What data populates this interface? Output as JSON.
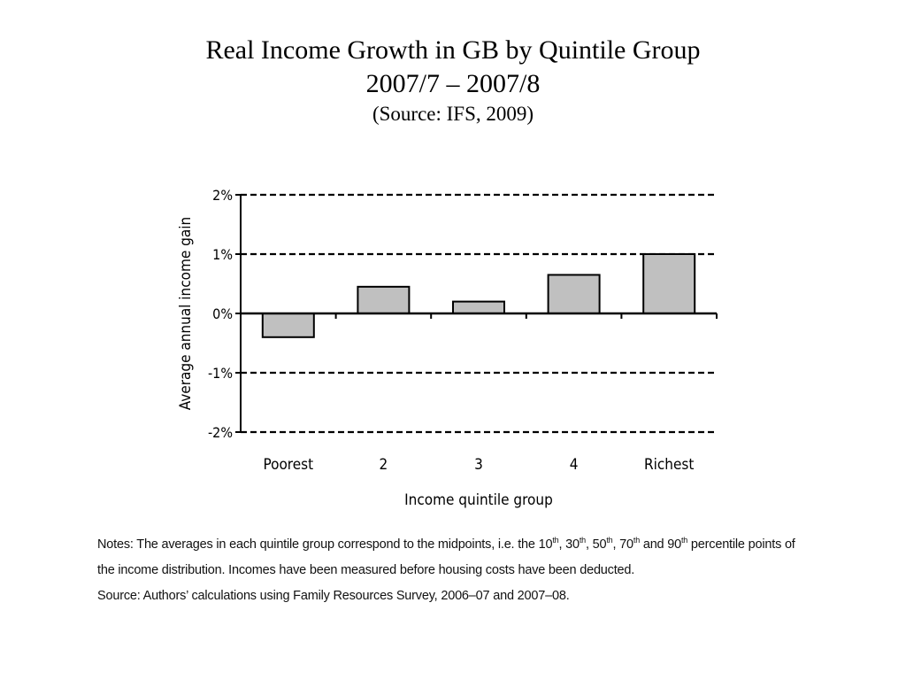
{
  "title": {
    "line1": "Real Income Growth in GB by Quintile Group",
    "line2": "2007/7 – 2007/8",
    "source": "(Source: IFS, 2009)"
  },
  "chart_data": {
    "type": "bar",
    "categories": [
      "Poorest",
      "2",
      "3",
      "4",
      "Richest"
    ],
    "values": [
      -0.4,
      0.45,
      0.2,
      0.65,
      1.0
    ],
    "xlabel": "Income quintile group",
    "ylabel": "Average annual income gain",
    "ylim": [
      -2,
      2
    ],
    "yticks": [
      2,
      1,
      0,
      -1,
      -2
    ],
    "ytick_labels": [
      "2%",
      "1%",
      "0%",
      "-1%",
      "-2%"
    ],
    "grid": "dashed horizontal at 2%, 1%, -1%, -2%",
    "colors": {
      "bar_fill": "#c0c0c0",
      "bar_stroke": "#000000"
    }
  },
  "notes": {
    "notes_label": "Notes:",
    "notes_text_a": " The averages in each quintile group correspond to the midpoints, i.e. the 10",
    "sup_th": "th",
    "sep": ", ",
    "n30": "30",
    "n50": "50",
    "n70": "70",
    "and": " and ",
    "n90": "90",
    "notes_text_b": " percentile points of the income distribution. Incomes have been measured before housing costs have been deducted.",
    "source_label": "Source:",
    "source_text": " Authors’ calculations using Family Resources Survey, 2006–07 and 2007–08."
  }
}
